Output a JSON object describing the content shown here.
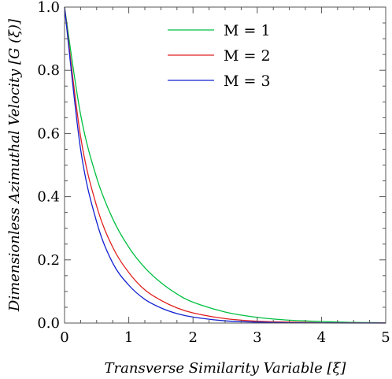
{
  "chart_data": {
    "type": "line",
    "title": "",
    "xlabel": "Transverse Similarity Variable [ξ]",
    "ylabel": "Dimensionless Azimuthal Velocity [G (ξ)]",
    "xlim": [
      0,
      5
    ],
    "ylim": [
      0,
      1
    ],
    "xticks": [
      "0",
      "1",
      "2",
      "3",
      "4",
      "5"
    ],
    "yticks": [
      "0.0",
      "0.2",
      "0.4",
      "0.6",
      "0.8",
      "1.0"
    ],
    "grid": false,
    "legend_position": "top-right",
    "x": [
      0,
      0.25,
      0.5,
      0.75,
      1,
      1.25,
      1.5,
      1.75,
      2,
      2.5,
      3,
      3.5,
      4,
      4.5,
      5
    ],
    "series": [
      {
        "name": "M = 1",
        "color": "#00c040",
        "values": [
          1.0,
          0.66,
          0.46,
          0.33,
          0.24,
          0.175,
          0.128,
          0.092,
          0.066,
          0.035,
          0.018,
          0.009,
          0.005,
          0.002,
          0.001
        ]
      },
      {
        "name": "M = 2",
        "color": "#e02020",
        "values": [
          1.0,
          0.59,
          0.37,
          0.24,
          0.16,
          0.105,
          0.072,
          0.048,
          0.032,
          0.014,
          0.006,
          0.003,
          0.001,
          0.0005,
          0.0002
        ]
      },
      {
        "name": "M = 3",
        "color": "#1020d0",
        "values": [
          1.0,
          0.55,
          0.32,
          0.19,
          0.12,
          0.075,
          0.048,
          0.03,
          0.019,
          0.007,
          0.003,
          0.001,
          0.0005,
          0.0002,
          0.0001
        ]
      }
    ]
  }
}
